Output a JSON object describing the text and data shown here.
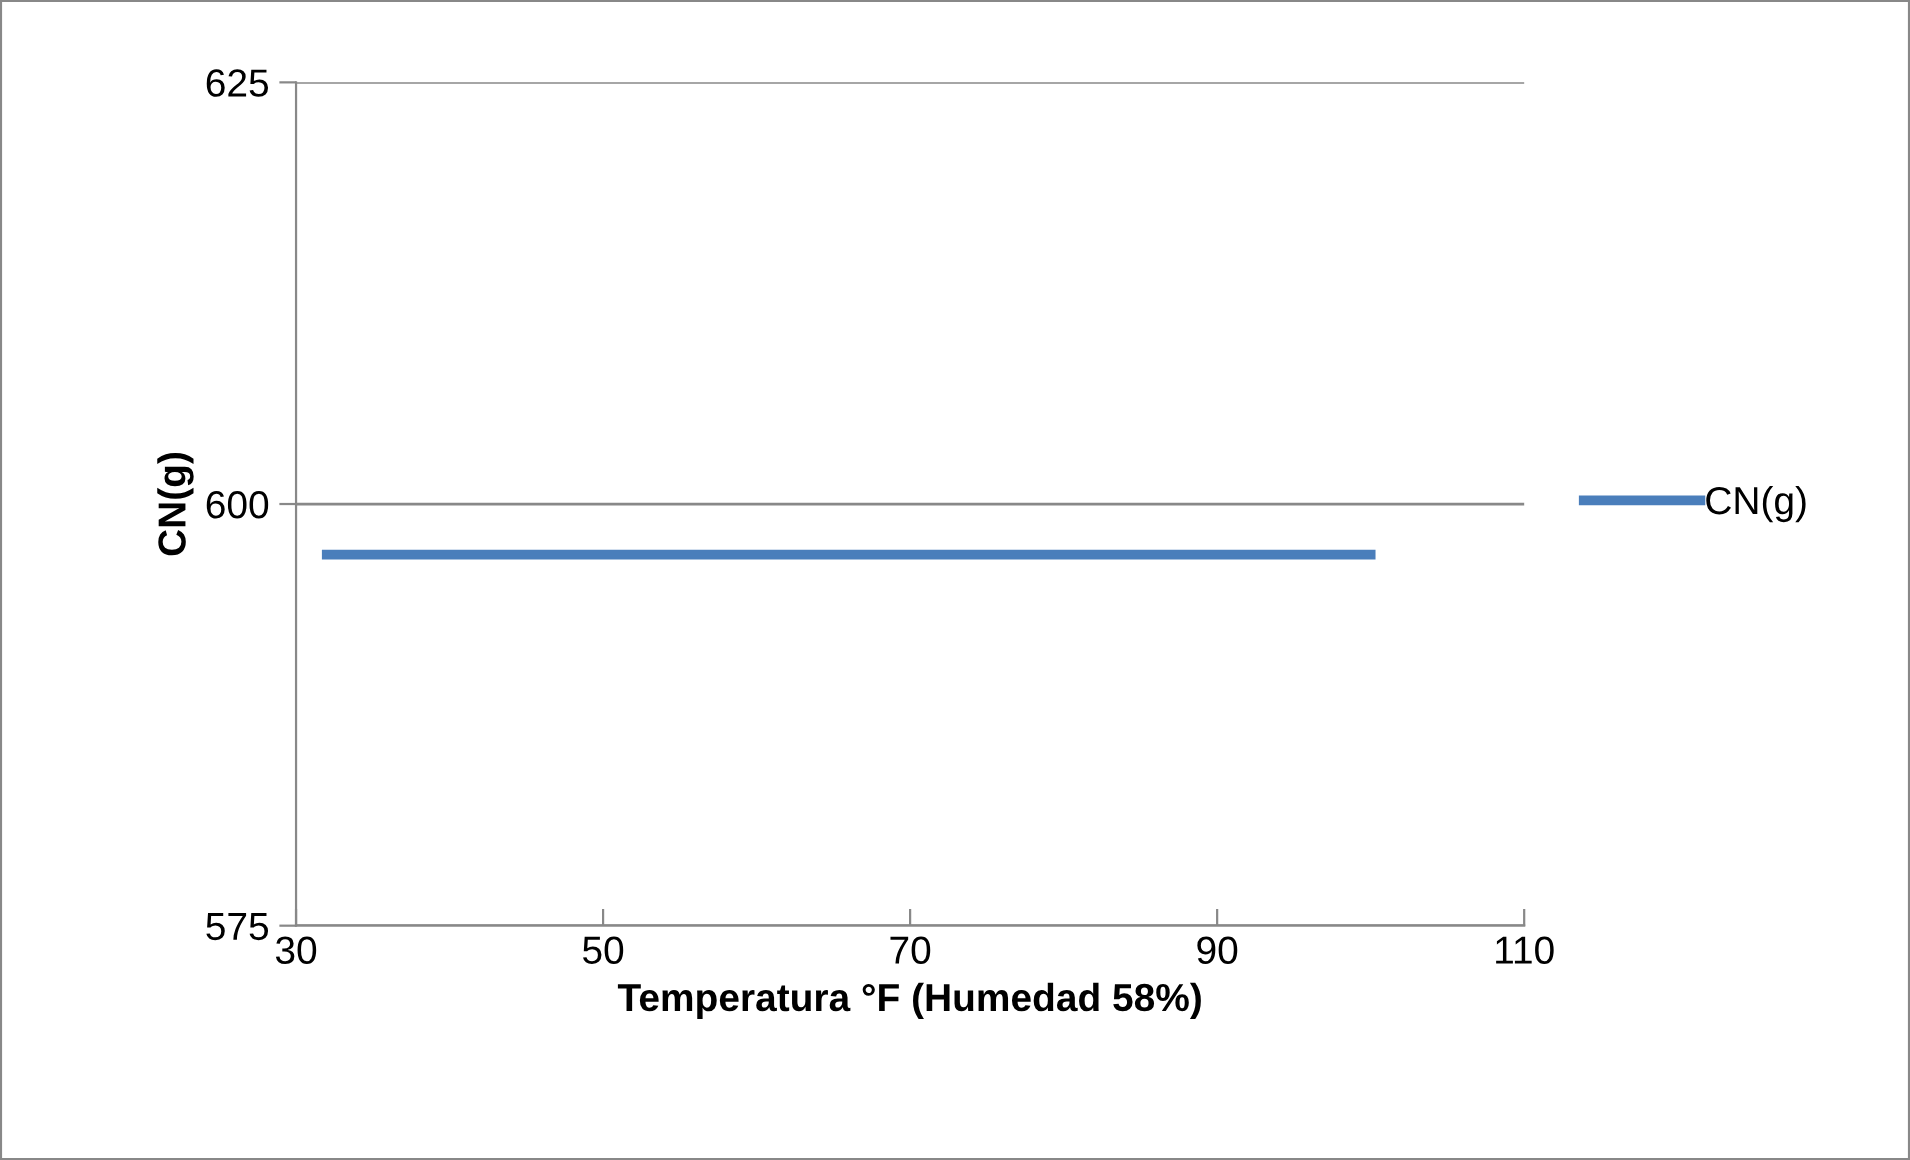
{
  "chart_data": {
    "type": "line",
    "xlabel": "Temperatura °F (Humedad 58%)",
    "ylabel": "CN(g)",
    "x": [
      32,
      100
    ],
    "series": [
      {
        "name": "CN(g)",
        "color": "#4a7ebb",
        "values": [
          597,
          597
        ]
      }
    ],
    "xlim": [
      30,
      110
    ],
    "xticks": [
      30,
      50,
      70,
      90,
      110
    ],
    "ylim": [
      575,
      625
    ],
    "yticks": [
      575,
      600,
      625
    ],
    "grid": "y",
    "legend": "right",
    "marker": "none",
    "line_style": "solid"
  }
}
